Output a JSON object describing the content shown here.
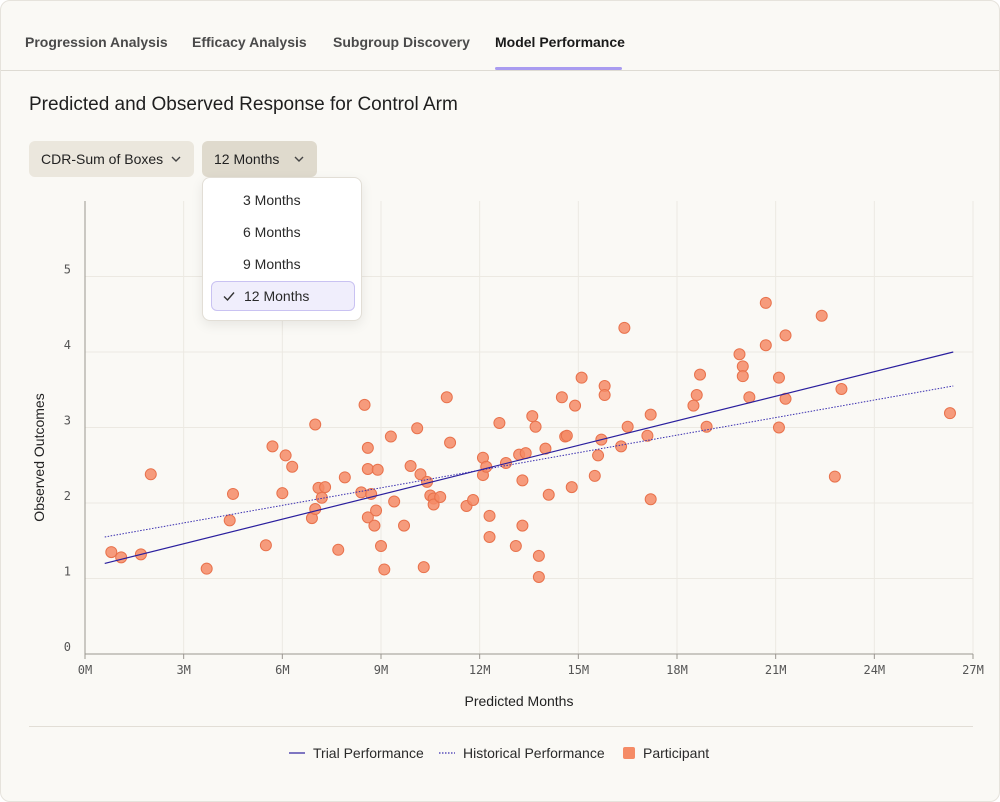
{
  "tabs": [
    {
      "label": "Progression Analysis",
      "active": false
    },
    {
      "label": "Efficacy Analysis",
      "active": false
    },
    {
      "label": "Subgroup Discovery",
      "active": false
    },
    {
      "label": "Model Performance",
      "active": true
    }
  ],
  "page_title": "Predicted and Observed Response for Control Arm",
  "filters": {
    "measure": {
      "value": "CDR-Sum of Boxes"
    },
    "horizon": {
      "value": "12 Months",
      "options": [
        "3 Months",
        "6 Months",
        "9 Months",
        "12 Months"
      ],
      "selected": "12 Months"
    }
  },
  "legend": {
    "trial": "Trial Performance",
    "historical": "Historical Performance",
    "participant": "Participant"
  },
  "colors": {
    "trial_line": "#2a1f9e",
    "historical_line": "#3a2fb0",
    "participant_fill": "#f58b66",
    "participant_stroke": "#e8724c",
    "accent_tab": "#a99cf0"
  },
  "chart_data": {
    "type": "scatter",
    "title": "",
    "xlabel": "Predicted Months",
    "ylabel": "Observed Outcomes",
    "xlim": [
      0,
      27
    ],
    "ylim": [
      0,
      6
    ],
    "x_ticks": [
      0,
      3,
      6,
      9,
      12,
      15,
      18,
      21,
      24,
      27
    ],
    "x_tick_labels": [
      "0M",
      "3M",
      "6M",
      "9M",
      "12M",
      "15M",
      "18M",
      "21M",
      "24M",
      "27M"
    ],
    "y_ticks": [
      0,
      1,
      2,
      3,
      4,
      5
    ],
    "y_tick_labels": [
      "0",
      "1",
      "2",
      "3",
      "4",
      "5"
    ],
    "grid": true,
    "series": [
      {
        "name": "Trial Performance",
        "type": "line",
        "style": "solid",
        "x": [
          0.6,
          26.4
        ],
        "y": [
          1.2,
          4.0
        ]
      },
      {
        "name": "Historical Performance",
        "type": "line",
        "style": "dotted",
        "x": [
          0.6,
          26.4
        ],
        "y": [
          1.55,
          3.55
        ]
      },
      {
        "name": "Participant",
        "type": "scatter",
        "points": [
          [
            0.8,
            1.35
          ],
          [
            1.1,
            1.28
          ],
          [
            1.7,
            1.32
          ],
          [
            2.0,
            2.38
          ],
          [
            3.7,
            1.13
          ],
          [
            4.4,
            1.77
          ],
          [
            4.5,
            2.12
          ],
          [
            5.5,
            1.44
          ],
          [
            5.7,
            2.75
          ],
          [
            6.0,
            2.13
          ],
          [
            6.1,
            2.63
          ],
          [
            6.3,
            2.48
          ],
          [
            6.9,
            1.8
          ],
          [
            7.0,
            3.04
          ],
          [
            7.0,
            1.92
          ],
          [
            7.1,
            2.2
          ],
          [
            7.2,
            2.07
          ],
          [
            7.3,
            2.21
          ],
          [
            7.7,
            1.38
          ],
          [
            7.9,
            2.34
          ],
          [
            8.4,
            2.14
          ],
          [
            8.5,
            3.3
          ],
          [
            8.6,
            2.73
          ],
          [
            8.6,
            2.45
          ],
          [
            8.6,
            1.81
          ],
          [
            8.7,
            2.12
          ],
          [
            8.8,
            1.7
          ],
          [
            8.85,
            1.9
          ],
          [
            8.9,
            2.44
          ],
          [
            9.0,
            1.43
          ],
          [
            9.1,
            1.12
          ],
          [
            9.3,
            2.88
          ],
          [
            9.4,
            2.02
          ],
          [
            9.7,
            1.7
          ],
          [
            9.9,
            2.49
          ],
          [
            10.1,
            2.99
          ],
          [
            10.2,
            2.38
          ],
          [
            10.3,
            1.15
          ],
          [
            10.4,
            2.28
          ],
          [
            10.5,
            2.1
          ],
          [
            10.6,
            2.06
          ],
          [
            10.6,
            1.98
          ],
          [
            10.8,
            2.08
          ],
          [
            11.0,
            3.4
          ],
          [
            11.1,
            2.8
          ],
          [
            11.6,
            1.96
          ],
          [
            11.8,
            2.04
          ],
          [
            12.1,
            2.6
          ],
          [
            12.1,
            2.37
          ],
          [
            12.2,
            2.48
          ],
          [
            12.3,
            1.83
          ],
          [
            12.3,
            1.55
          ],
          [
            12.6,
            3.06
          ],
          [
            12.8,
            2.53
          ],
          [
            13.1,
            1.43
          ],
          [
            13.2,
            2.64
          ],
          [
            13.3,
            2.3
          ],
          [
            13.3,
            1.7
          ],
          [
            13.4,
            2.66
          ],
          [
            13.6,
            3.15
          ],
          [
            13.7,
            3.01
          ],
          [
            13.8,
            1.3
          ],
          [
            13.8,
            1.02
          ],
          [
            14.0,
            2.72
          ],
          [
            14.1,
            2.11
          ],
          [
            14.5,
            3.4
          ],
          [
            14.6,
            2.88
          ],
          [
            14.65,
            2.89
          ],
          [
            14.8,
            2.21
          ],
          [
            14.9,
            3.29
          ],
          [
            15.1,
            3.66
          ],
          [
            15.5,
            2.36
          ],
          [
            15.6,
            2.63
          ],
          [
            15.7,
            2.84
          ],
          [
            15.8,
            3.55
          ],
          [
            15.8,
            3.43
          ],
          [
            16.3,
            2.75
          ],
          [
            16.4,
            4.32
          ],
          [
            16.5,
            3.01
          ],
          [
            17.1,
            2.89
          ],
          [
            17.2,
            3.17
          ],
          [
            17.2,
            2.05
          ],
          [
            18.5,
            3.29
          ],
          [
            18.6,
            3.43
          ],
          [
            18.7,
            3.7
          ],
          [
            18.9,
            3.01
          ],
          [
            19.9,
            3.97
          ],
          [
            20.0,
            3.81
          ],
          [
            20.0,
            3.68
          ],
          [
            20.2,
            3.4
          ],
          [
            20.7,
            4.65
          ],
          [
            20.7,
            4.09
          ],
          [
            21.1,
            3.66
          ],
          [
            21.1,
            3.0
          ],
          [
            21.3,
            4.22
          ],
          [
            21.3,
            3.38
          ],
          [
            22.4,
            4.48
          ],
          [
            22.8,
            2.35
          ],
          [
            23.0,
            3.51
          ],
          [
            26.3,
            3.19
          ]
        ]
      }
    ]
  }
}
